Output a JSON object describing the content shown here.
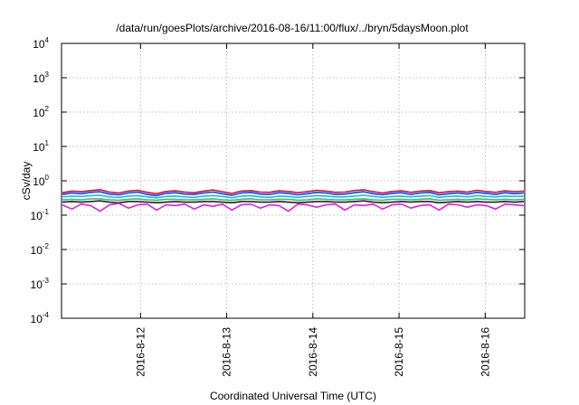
{
  "chart_data": {
    "type": "line",
    "title": "/data/run/goesPlots/archive/2016-08-16/11:00/flux/../bryn/5daysMoon.plot",
    "xlabel": "Coordinated Universal Time (UTC)",
    "ylabel": "cSv/day",
    "yscale": "log",
    "ylim": [
      0.0001,
      10000
    ],
    "xlim": [
      "2016-08-11 02:00",
      "2016-08-16 11:00"
    ],
    "grid": true,
    "y_ticks": [
      {
        "base": "10",
        "exp": "-4",
        "value": 0.0001
      },
      {
        "base": "10",
        "exp": "-3",
        "value": 0.001
      },
      {
        "base": "10",
        "exp": "-2",
        "value": 0.01
      },
      {
        "base": "10",
        "exp": "-1",
        "value": 0.1
      },
      {
        "base": "10",
        "exp": "0",
        "value": 1
      },
      {
        "base": "10",
        "exp": "1",
        "value": 10
      },
      {
        "base": "10",
        "exp": "2",
        "value": 100
      },
      {
        "base": "10",
        "exp": "3",
        "value": 1000
      },
      {
        "base": "10",
        "exp": "4",
        "value": 10000
      }
    ],
    "x_ticks": [
      {
        "label": "2016-8-12",
        "value": "2016-08-12 00:00"
      },
      {
        "label": "2016-8-13",
        "value": "2016-08-13 00:00"
      },
      {
        "label": "2016-8-14",
        "value": "2016-08-14 00:00"
      },
      {
        "label": "2016-8-15",
        "value": "2016-08-15 00:00"
      },
      {
        "label": "2016-8-16",
        "value": "2016-08-16 00:00"
      }
    ],
    "series": [
      {
        "color": "#d0103a",
        "values": [
          0.45,
          0.5,
          0.48,
          0.52,
          0.55,
          0.47,
          0.44,
          0.5,
          0.53,
          0.46,
          0.42,
          0.49,
          0.51,
          0.47,
          0.45,
          0.5,
          0.54,
          0.48,
          0.43,
          0.5,
          0.52,
          0.47,
          0.46,
          0.51,
          0.49,
          0.45,
          0.48,
          0.53,
          0.5,
          0.46,
          0.47,
          0.52,
          0.55,
          0.48,
          0.44,
          0.49,
          0.51,
          0.46,
          0.5,
          0.52,
          0.45,
          0.48,
          0.5,
          0.47,
          0.53,
          0.49,
          0.46,
          0.51,
          0.48,
          0.5
        ]
      },
      {
        "color": "#1a3fd8",
        "values": [
          0.4,
          0.44,
          0.42,
          0.46,
          0.48,
          0.41,
          0.39,
          0.44,
          0.47,
          0.4,
          0.37,
          0.43,
          0.45,
          0.41,
          0.4,
          0.44,
          0.47,
          0.42,
          0.38,
          0.44,
          0.46,
          0.41,
          0.4,
          0.45,
          0.43,
          0.39,
          0.42,
          0.46,
          0.44,
          0.4,
          0.41,
          0.45,
          0.48,
          0.42,
          0.39,
          0.43,
          0.45,
          0.4,
          0.44,
          0.46,
          0.39,
          0.42,
          0.44,
          0.41,
          0.46,
          0.43,
          0.4,
          0.45,
          0.42,
          0.44
        ]
      },
      {
        "color": "#20b8e8",
        "values": [
          0.34,
          0.36,
          0.35,
          0.37,
          0.38,
          0.34,
          0.33,
          0.36,
          0.37,
          0.34,
          0.32,
          0.35,
          0.36,
          0.34,
          0.33,
          0.36,
          0.37,
          0.35,
          0.32,
          0.36,
          0.37,
          0.34,
          0.33,
          0.36,
          0.35,
          0.33,
          0.35,
          0.37,
          0.36,
          0.34,
          0.34,
          0.36,
          0.38,
          0.35,
          0.33,
          0.35,
          0.36,
          0.34,
          0.36,
          0.37,
          0.33,
          0.35,
          0.36,
          0.34,
          0.37,
          0.35,
          0.34,
          0.36,
          0.35,
          0.36
        ]
      },
      {
        "color": "#30c070",
        "values": [
          0.28,
          0.29,
          0.28,
          0.3,
          0.3,
          0.28,
          0.27,
          0.29,
          0.3,
          0.28,
          0.27,
          0.29,
          0.29,
          0.28,
          0.28,
          0.29,
          0.3,
          0.28,
          0.27,
          0.29,
          0.3,
          0.28,
          0.28,
          0.29,
          0.29,
          0.27,
          0.28,
          0.3,
          0.29,
          0.28,
          0.28,
          0.29,
          0.3,
          0.28,
          0.27,
          0.29,
          0.29,
          0.28,
          0.29,
          0.3,
          0.27,
          0.28,
          0.29,
          0.28,
          0.3,
          0.29,
          0.28,
          0.29,
          0.28,
          0.29
        ]
      },
      {
        "color": "#222222",
        "values": [
          0.24,
          0.25,
          0.24,
          0.25,
          0.26,
          0.24,
          0.23,
          0.25,
          0.25,
          0.24,
          0.23,
          0.24,
          0.25,
          0.24,
          0.24,
          0.25,
          0.25,
          0.24,
          0.23,
          0.25,
          0.25,
          0.24,
          0.24,
          0.25,
          0.24,
          0.23,
          0.24,
          0.25,
          0.25,
          0.24,
          0.24,
          0.25,
          0.26,
          0.24,
          0.23,
          0.24,
          0.25,
          0.24,
          0.25,
          0.25,
          0.23,
          0.24,
          0.25,
          0.24,
          0.25,
          0.24,
          0.24,
          0.25,
          0.24,
          0.25
        ]
      },
      {
        "color": "#e020e0",
        "values": [
          0.2,
          0.15,
          0.21,
          0.19,
          0.13,
          0.2,
          0.22,
          0.16,
          0.2,
          0.21,
          0.14,
          0.2,
          0.19,
          0.21,
          0.15,
          0.2,
          0.18,
          0.21,
          0.14,
          0.2,
          0.21,
          0.16,
          0.2,
          0.19,
          0.13,
          0.21,
          0.2,
          0.17,
          0.2,
          0.21,
          0.14,
          0.2,
          0.19,
          0.21,
          0.15,
          0.2,
          0.21,
          0.16,
          0.19,
          0.2,
          0.14,
          0.21,
          0.2,
          0.17,
          0.2,
          0.19,
          0.15,
          0.21,
          0.2,
          0.19
        ]
      }
    ]
  }
}
